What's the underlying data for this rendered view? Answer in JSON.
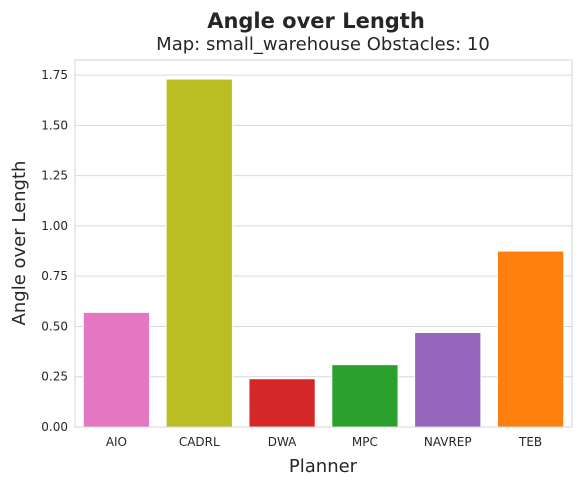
{
  "chart_data": {
    "type": "bar",
    "title": "Angle over Length",
    "subtitle": "Map: small_warehouse Obstacles: 10",
    "xlabel": "Planner",
    "ylabel": "Angle over Length",
    "categories": [
      "AIO",
      "CADRL",
      "DWA",
      "MPC",
      "NAVREP",
      "TEB"
    ],
    "values": [
      0.57,
      1.73,
      0.24,
      0.31,
      0.47,
      0.875
    ],
    "colors": [
      "#e377c2",
      "#bcbd22",
      "#d62728",
      "#2ca02c",
      "#9467bd",
      "#ff7f0e"
    ],
    "ylim": [
      0,
      1.825
    ],
    "yticks": [
      0.0,
      0.25,
      0.5,
      0.75,
      1.0,
      1.25,
      1.5,
      1.75
    ],
    "ytick_labels": [
      "0.00",
      "0.25",
      "0.50",
      "0.75",
      "1.00",
      "1.25",
      "1.50",
      "1.75"
    ],
    "grid": "horizontal",
    "legend": "none"
  }
}
